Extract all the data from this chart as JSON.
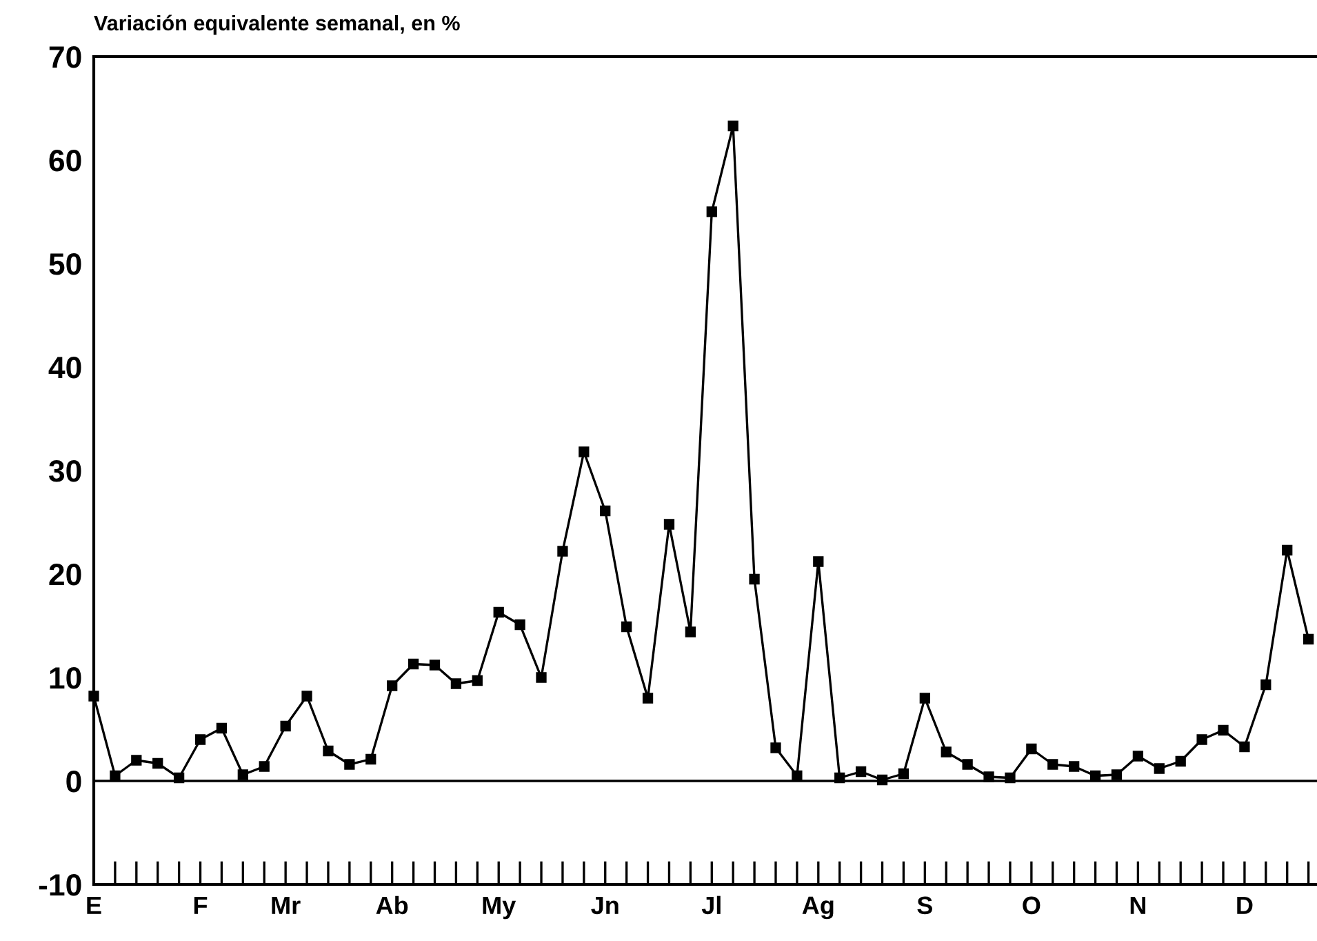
{
  "chart_data": {
    "type": "line",
    "title": "Variación equivalente semanal, en %",
    "categories": [
      "E",
      null,
      null,
      null,
      null,
      "F",
      null,
      null,
      null,
      "Mr",
      null,
      null,
      null,
      null,
      "Ab",
      null,
      null,
      null,
      null,
      "My",
      null,
      null,
      null,
      null,
      "Jn",
      null,
      null,
      null,
      null,
      "Jl",
      null,
      null,
      null,
      null,
      "Ag",
      null,
      null,
      null,
      null,
      "S",
      null,
      null,
      null,
      null,
      "O",
      null,
      null,
      null,
      null,
      "N",
      null,
      null,
      null,
      null,
      "D",
      null,
      null,
      null
    ],
    "series": [
      {
        "color": "#000000",
        "values": [
          8.2,
          0.5,
          2.0,
          1.7,
          0.3,
          4.0,
          5.1,
          0.6,
          1.4,
          5.3,
          8.2,
          2.9,
          1.6,
          2.1,
          9.2,
          11.3,
          11.2,
          9.4,
          9.7,
          16.3,
          15.1,
          10.0,
          22.2,
          31.8,
          26.1,
          14.9,
          8.0,
          24.8,
          14.4,
          55.0,
          63.3,
          19.5,
          3.2,
          0.5,
          21.2,
          0.3,
          0.9,
          0.1,
          0.7,
          8.0,
          2.8,
          1.6,
          0.4,
          0.3,
          3.1,
          1.6,
          1.4,
          0.5,
          0.6,
          2.4,
          1.2,
          1.9,
          4.0,
          4.9,
          3.3,
          9.3,
          22.3,
          13.7
        ]
      }
    ],
    "ylim": [
      -10,
      70
    ],
    "yticks": [
      -10,
      0,
      10,
      20,
      30,
      40,
      50,
      60,
      70
    ],
    "ref_lines": [
      {
        "axis": "y",
        "value": 0,
        "color": "#000000"
      }
    ],
    "marker": "square",
    "line_style": "solid"
  }
}
